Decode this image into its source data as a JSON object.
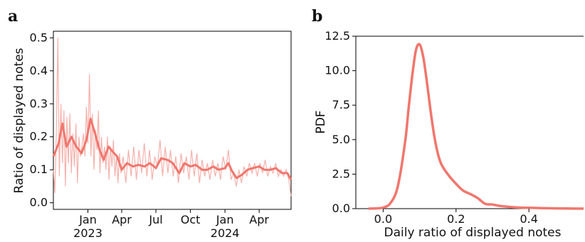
{
  "colors": {
    "line": "#f0766d",
    "raw": "#f3a39c"
  },
  "chart_data": [
    {
      "panel": "a",
      "type": "line",
      "xlabel": "",
      "ylabel": "Ratio of displayed notes",
      "xlim": [
        "2022-10-01",
        "2024-06-25"
      ],
      "ylim": [
        -0.02,
        0.52
      ],
      "yticks": [
        0.0,
        0.1,
        0.2,
        0.3,
        0.4,
        0.5
      ],
      "ytick_labels": [
        "0.0",
        "0.1",
        "0.2",
        "0.3",
        "0.4",
        "0.5"
      ],
      "xticks": [
        {
          "date": "2023-01-01",
          "label": "Jan",
          "year": "2023"
        },
        {
          "date": "2023-04-01",
          "label": "Apr",
          "year": ""
        },
        {
          "date": "2023-07-01",
          "label": "Jul",
          "year": ""
        },
        {
          "date": "2023-10-01",
          "label": "Oct",
          "year": ""
        },
        {
          "date": "2024-01-01",
          "label": "Jan",
          "year": "2024"
        },
        {
          "date": "2024-04-01",
          "label": "Apr",
          "year": ""
        }
      ],
      "series": [
        {
          "role": "smoothed",
          "x": [
            "2022-10-01",
            "2022-10-15",
            "2022-10-25",
            "2022-11-05",
            "2022-11-18",
            "2022-12-01",
            "2022-12-15",
            "2022-12-28",
            "2023-01-08",
            "2023-01-20",
            "2023-02-01",
            "2023-02-12",
            "2023-02-25",
            "2023-03-08",
            "2023-03-20",
            "2023-04-01",
            "2023-04-15",
            "2023-05-01",
            "2023-05-15",
            "2023-06-01",
            "2023-06-15",
            "2023-07-01",
            "2023-07-15",
            "2023-08-01",
            "2023-08-15",
            "2023-09-01",
            "2023-09-15",
            "2023-10-01",
            "2023-10-15",
            "2023-11-01",
            "2023-11-15",
            "2023-12-01",
            "2023-12-15",
            "2024-01-01",
            "2024-01-10",
            "2024-01-20",
            "2024-02-01",
            "2024-02-15",
            "2024-03-01",
            "2024-03-15",
            "2024-04-01",
            "2024-04-15",
            "2024-05-01",
            "2024-05-15",
            "2024-06-01",
            "2024-06-15",
            "2024-06-25"
          ],
          "y": [
            0.14,
            0.18,
            0.24,
            0.17,
            0.2,
            0.17,
            0.15,
            0.19,
            0.255,
            0.21,
            0.16,
            0.13,
            0.17,
            0.155,
            0.14,
            0.1,
            0.12,
            0.11,
            0.115,
            0.11,
            0.12,
            0.105,
            0.135,
            0.13,
            0.12,
            0.09,
            0.12,
            0.11,
            0.115,
            0.1,
            0.1,
            0.11,
            0.1,
            0.105,
            0.12,
            0.095,
            0.075,
            0.085,
            0.1,
            0.105,
            0.11,
            0.1,
            0.1,
            0.105,
            0.09,
            0.09,
            0.07
          ]
        },
        {
          "role": "daily",
          "x": [
            "2022-10-01",
            "2022-10-05",
            "2022-10-09",
            "2022-10-13",
            "2022-10-17",
            "2022-10-21",
            "2022-10-25",
            "2022-10-29",
            "2022-11-02",
            "2022-11-06",
            "2022-11-10",
            "2022-11-14",
            "2022-11-18",
            "2022-11-22",
            "2022-11-26",
            "2022-11-30",
            "2022-12-04",
            "2022-12-08",
            "2022-12-12",
            "2022-12-16",
            "2022-12-20",
            "2022-12-24",
            "2022-12-28",
            "2023-01-01",
            "2023-01-05",
            "2023-01-09",
            "2023-01-13",
            "2023-01-17",
            "2023-01-21",
            "2023-01-25",
            "2023-01-29",
            "2023-02-02",
            "2023-02-06",
            "2023-02-10",
            "2023-02-14",
            "2023-02-18",
            "2023-02-22",
            "2023-02-26",
            "2023-03-02",
            "2023-03-06",
            "2023-03-10",
            "2023-03-14",
            "2023-03-18",
            "2023-03-22",
            "2023-03-26",
            "2023-03-30",
            "2023-04-05",
            "2023-04-12",
            "2023-04-19",
            "2023-04-26",
            "2023-05-03",
            "2023-05-10",
            "2023-05-17",
            "2023-05-24",
            "2023-05-31",
            "2023-06-07",
            "2023-06-14",
            "2023-06-21",
            "2023-06-28",
            "2023-07-05",
            "2023-07-12",
            "2023-07-19",
            "2023-07-26",
            "2023-08-02",
            "2023-08-09",
            "2023-08-16",
            "2023-08-23",
            "2023-08-30",
            "2023-09-06",
            "2023-09-13",
            "2023-09-20",
            "2023-09-27",
            "2023-10-04",
            "2023-10-11",
            "2023-10-18",
            "2023-10-25",
            "2023-11-01",
            "2023-11-08",
            "2023-11-15",
            "2023-11-22",
            "2023-11-29",
            "2023-12-06",
            "2023-12-13",
            "2023-12-20",
            "2023-12-27",
            "2024-01-03",
            "2024-01-10",
            "2024-01-17",
            "2024-01-24",
            "2024-01-31",
            "2024-02-07",
            "2024-02-14",
            "2024-02-21",
            "2024-02-28",
            "2024-03-06",
            "2024-03-13",
            "2024-03-20",
            "2024-03-27",
            "2024-04-03",
            "2024-04-10",
            "2024-04-17",
            "2024-04-24",
            "2024-05-01",
            "2024-05-08",
            "2024-05-15",
            "2024-05-22",
            "2024-05-29",
            "2024-06-05",
            "2024-06-12",
            "2024-06-19",
            "2024-06-25"
          ],
          "y": [
            0.1,
            0.03,
            0.22,
            0.5,
            0.08,
            0.3,
            0.12,
            0.28,
            0.05,
            0.26,
            0.12,
            0.27,
            0.09,
            0.21,
            0.11,
            0.24,
            0.06,
            0.2,
            0.14,
            0.17,
            0.21,
            0.14,
            0.29,
            0.18,
            0.39,
            0.14,
            0.27,
            0.1,
            0.22,
            0.16,
            0.28,
            0.09,
            0.2,
            0.12,
            0.17,
            0.1,
            0.2,
            0.07,
            0.17,
            0.11,
            0.19,
            0.08,
            0.14,
            0.06,
            0.15,
            0.09,
            0.14,
            0.06,
            0.16,
            0.08,
            0.17,
            0.07,
            0.16,
            0.09,
            0.18,
            0.08,
            0.16,
            0.07,
            0.14,
            0.11,
            0.19,
            0.08,
            0.17,
            0.09,
            0.16,
            0.08,
            0.14,
            0.06,
            0.15,
            0.09,
            0.14,
            0.07,
            0.16,
            0.08,
            0.15,
            0.06,
            0.13,
            0.08,
            0.12,
            0.07,
            0.13,
            0.08,
            0.12,
            0.07,
            0.14,
            0.1,
            0.16,
            0.07,
            0.09,
            0.05,
            0.1,
            0.06,
            0.11,
            0.08,
            0.12,
            0.09,
            0.12,
            0.08,
            0.12,
            0.09,
            0.13,
            0.08,
            0.11,
            0.09,
            0.12,
            0.08,
            0.1,
            0.08,
            0.1,
            0.07,
            0.02
          ]
        }
      ]
    },
    {
      "panel": "b",
      "type": "line",
      "xlabel": "Daily ratio of displayed notes",
      "ylabel": "PDF",
      "xlim": [
        -0.075,
        0.55
      ],
      "ylim": [
        0.0,
        12.5
      ],
      "xticks": [
        0.0,
        0.2,
        0.4
      ],
      "xtick_labels": [
        "0.0",
        "0.2",
        "0.4"
      ],
      "yticks": [
        0.0,
        2.5,
        5.0,
        7.5,
        10.0,
        12.5
      ],
      "ytick_labels": [
        "0.0",
        "2.5",
        "5.0",
        "7.5",
        "10.0",
        "12.5"
      ],
      "series": [
        {
          "role": "kde",
          "x": [
            -0.04,
            -0.02,
            0.0,
            0.02,
            0.04,
            0.06,
            0.07,
            0.08,
            0.09,
            0.1,
            0.11,
            0.12,
            0.13,
            0.14,
            0.15,
            0.16,
            0.18,
            0.2,
            0.22,
            0.24,
            0.26,
            0.28,
            0.3,
            0.32,
            0.36,
            0.4,
            0.45,
            0.5,
            0.55
          ],
          "y": [
            0.0,
            0.02,
            0.08,
            0.4,
            1.6,
            4.8,
            7.3,
            9.7,
            11.5,
            11.9,
            11.0,
            9.2,
            7.1,
            5.3,
            4.0,
            3.2,
            2.4,
            1.8,
            1.3,
            1.05,
            0.75,
            0.35,
            0.3,
            0.2,
            0.1,
            0.06,
            0.03,
            0.01,
            0.0
          ]
        }
      ]
    }
  ]
}
